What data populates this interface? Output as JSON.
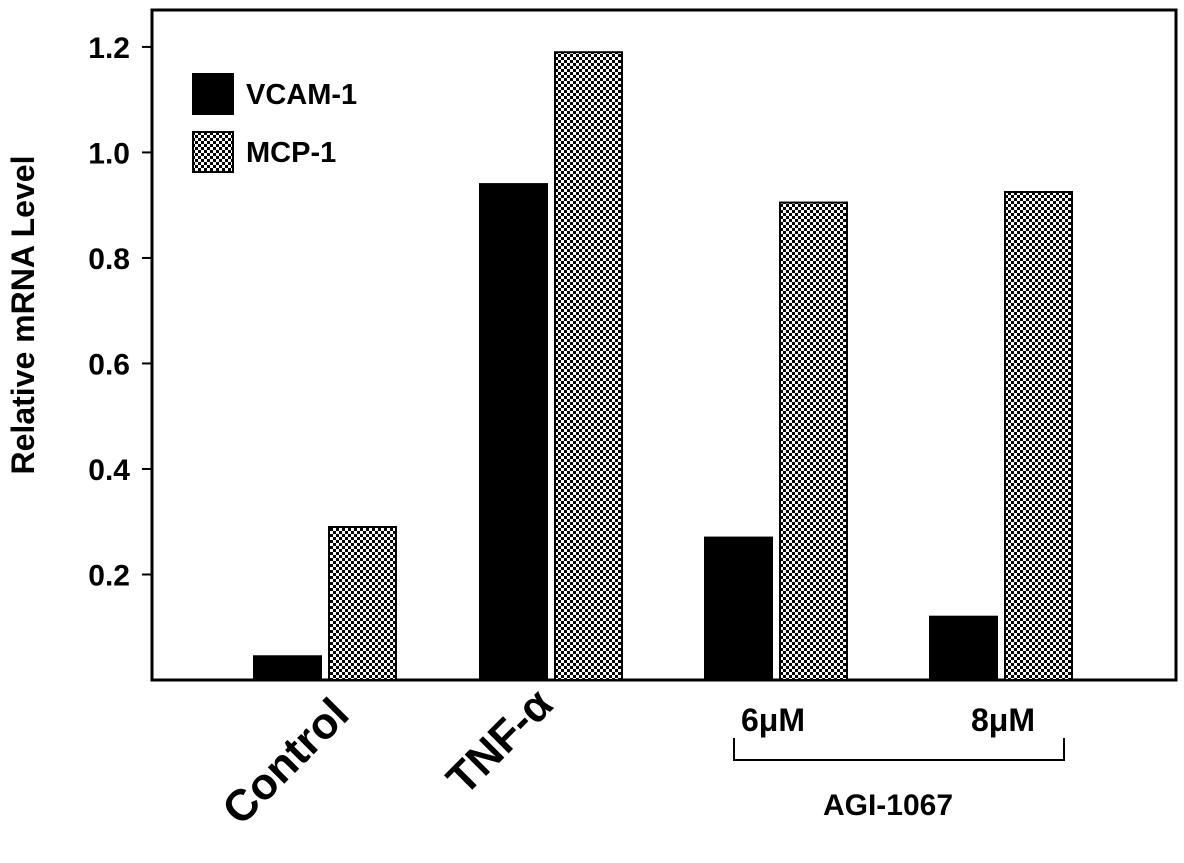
{
  "chart_data": {
    "type": "bar",
    "title": "",
    "xlabel": "",
    "ylabel": "Relative mRNA Level",
    "ylim": [
      0,
      1.27
    ],
    "yticks": [
      "0.2",
      "0.4",
      "0.6",
      "0.8",
      "1.0",
      "1.2"
    ],
    "categories": [
      "Control",
      "TNF-α",
      "6μM",
      "8μM"
    ],
    "group_label": "AGI-1067",
    "group_members": [
      "6μM",
      "8μM"
    ],
    "grid": false,
    "legend_position": "top-left",
    "series": [
      {
        "name": "VCAM-1",
        "values": [
          0.045,
          0.94,
          0.27,
          0.12
        ],
        "fill": "solid-black"
      },
      {
        "name": "MCP-1",
        "values": [
          0.29,
          1.19,
          0.905,
          0.925
        ],
        "fill": "checkered"
      }
    ]
  },
  "colors": {
    "axis": "#000000",
    "bar_solid": "#000000",
    "bar_pattern_dark": "#000000",
    "bar_pattern_light": "#ffffff",
    "background": "#ffffff"
  }
}
